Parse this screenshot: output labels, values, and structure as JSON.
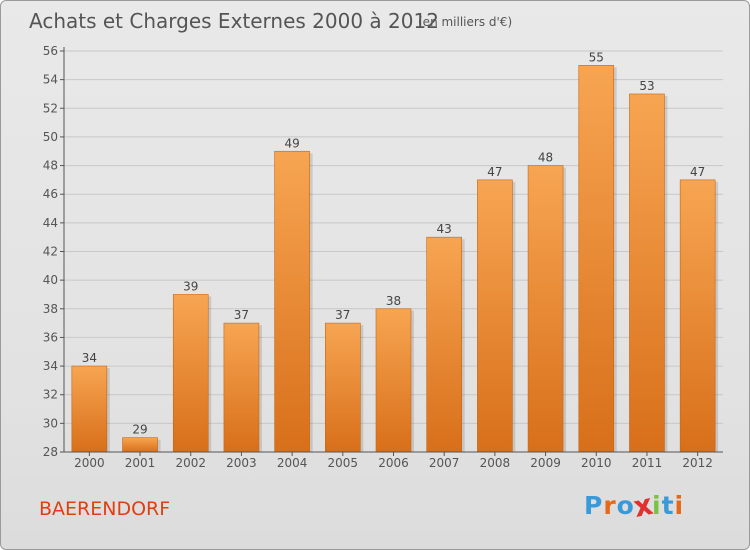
{
  "header": {
    "title": "Achats et Charges Externes 2000 à 2012",
    "unit": "(en milliers d'€)"
  },
  "footer": {
    "commune": "BAERENDORF",
    "logo_text": "Proxiti",
    "logo_colors": [
      "#3a9ad9",
      "#e8681a",
      "#3a9ad9",
      "#e03030",
      "#7cc242",
      "#3a9ad9",
      "#e8681a"
    ]
  },
  "colors": {
    "bar_top": "#f7a552",
    "bar_bottom": "#d86f1a",
    "axis": "#555555",
    "grid": "#c8c8c8",
    "commune": "#e04010"
  },
  "chart_data": {
    "type": "bar",
    "title": "Achats et Charges Externes 2000 à 2012",
    "subtitle": "(en milliers d'€)",
    "categories": [
      "2000",
      "2001",
      "2002",
      "2003",
      "2004",
      "2005",
      "2006",
      "2007",
      "2008",
      "2009",
      "2010",
      "2011",
      "2012"
    ],
    "values": [
      34,
      29,
      39,
      37,
      49,
      37,
      38,
      43,
      47,
      48,
      55,
      53,
      47
    ],
    "ylim": [
      28,
      56
    ],
    "yticks": [
      28,
      30,
      32,
      34,
      36,
      38,
      40,
      42,
      44,
      46,
      48,
      50,
      52,
      54,
      56
    ],
    "xlabel": "",
    "ylabel": "",
    "grid": true,
    "data_labels": true
  }
}
